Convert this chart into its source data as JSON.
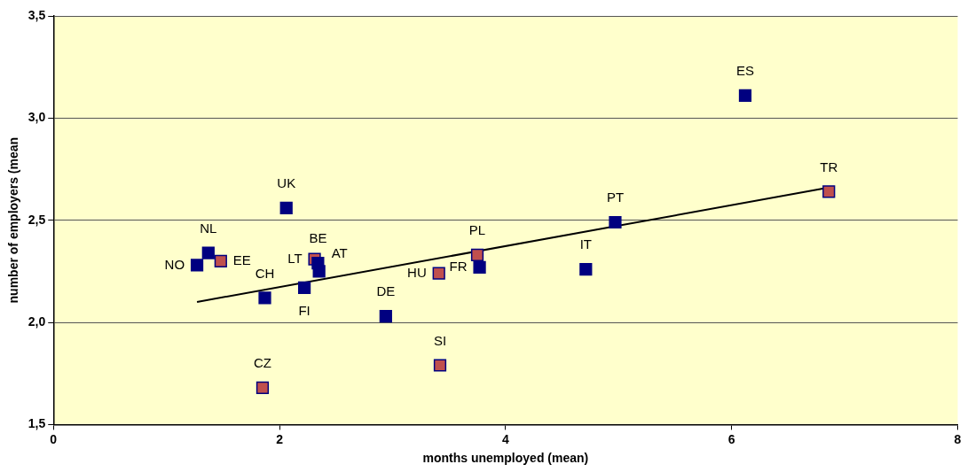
{
  "chart_data": {
    "type": "scatter",
    "xlabel": "months unemployed (mean)",
    "ylabel": "number of employers (mean",
    "xlim": [
      0,
      8
    ],
    "xticks": [
      0,
      2,
      4,
      6,
      8
    ],
    "ylim": [
      1.5,
      3.5
    ],
    "yticks": [
      {
        "value": 1.5,
        "label": "1,5"
      },
      {
        "value": 2.0,
        "label": "2,0"
      },
      {
        "value": 2.5,
        "label": "2,5"
      },
      {
        "value": 3.0,
        "label": "3,0"
      },
      {
        "value": 3.5,
        "label": "3,5"
      }
    ],
    "grid": "y",
    "legend": false,
    "marker": "square",
    "series": [
      {
        "color": "#000080",
        "x": [
          1.27,
          1.37,
          2.06,
          1.87,
          2.22,
          2.34,
          2.35,
          2.94,
          3.77,
          4.71,
          4.97,
          6.12
        ],
        "values": [
          2.28,
          2.34,
          2.56,
          2.12,
          2.17,
          2.29,
          2.25,
          2.03,
          2.27,
          2.26,
          2.49,
          3.11
        ],
        "value_labels": [
          "NO",
          "NL",
          "UK",
          "CH",
          "FI",
          "BE",
          "AT",
          "DE",
          "FR",
          "IT",
          "PT",
          "ES"
        ]
      },
      {
        "color": "#c0504d",
        "x": [
          1.48,
          2.31,
          3.41,
          3.42,
          3.75,
          6.86,
          1.85
        ],
        "values": [
          2.3,
          2.31,
          2.24,
          1.79,
          2.33,
          2.64,
          1.68
        ],
        "value_labels": [
          "EE",
          "LT",
          "HU",
          "SI",
          "PL",
          "TR",
          "CZ"
        ]
      },
      {
        "type": "line",
        "color": "#000000",
        "x": [
          1.27,
          6.86
        ],
        "values": [
          2.1,
          2.66
        ],
        "marker": "none"
      }
    ]
  }
}
